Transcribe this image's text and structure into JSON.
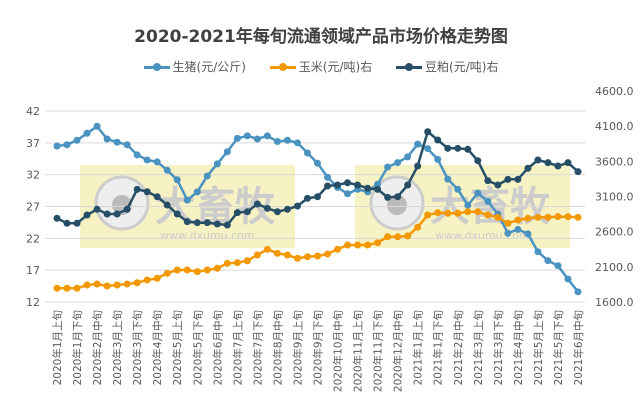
{
  "watermark": {
    "text": "大畜牧",
    "url": "www.dxumu.com"
  },
  "chart_data": {
    "type": "line",
    "title": "2020-2021年每旬流通领域产品市场价格走势图",
    "tick_labels": [
      "2020年1月上旬",
      "2020年1月下旬",
      "2020年2月中旬",
      "2020年3月上旬",
      "2020年3月下旬",
      "2020年4月中旬",
      "2020年5月上旬",
      "2020年5月下旬",
      "2020年6月中旬",
      "2020年7月上旬",
      "2020年7月下旬",
      "2020年8月中旬",
      "2020年9月上旬",
      "2020年9月下旬",
      "2020年10月中旬",
      "2020年11月上旬",
      "2020年11月下旬",
      "2020年12月中旬",
      "2021年1月上旬",
      "2021年1月下旬",
      "2021年2月中旬",
      "2021年3月上旬",
      "2021年3月下旬",
      "2021年4月中旬",
      "2021年5月上旬",
      "2021年5月下旬",
      "2021年6月中旬"
    ],
    "left_axis": {
      "ylim": [
        12,
        42
      ],
      "ticks": [
        "12",
        "17",
        "22",
        "27",
        "32",
        "37",
        "42"
      ]
    },
    "right_axis": {
      "ylim": [
        1600,
        4600
      ],
      "ticks": [
        "1600.0",
        "2100.0",
        "2600.0",
        "3100.0",
        "3600.0",
        "4100.0",
        "4600.0"
      ]
    },
    "grid": true,
    "legend": "top",
    "series": [
      {
        "name": "生猪(元/公斤)",
        "axis": "left",
        "color": "#4a93c0",
        "values": [
          36.5,
          36.7,
          37.4,
          38.5,
          39.6,
          37.6,
          37.1,
          36.7,
          35.1,
          34.3,
          34.0,
          32.7,
          31.2,
          28.0,
          29.3,
          31.8,
          33.7,
          35.6,
          37.7,
          38.1,
          37.6,
          38.1,
          37.2,
          37.4,
          37.0,
          35.4,
          33.8,
          31.6,
          30.0,
          29.0,
          29.7,
          29.3,
          30.5,
          33.2,
          33.9,
          34.8,
          36.8,
          36.1,
          34.4,
          31.3,
          29.7,
          27.2,
          29.1,
          27.8,
          25.8,
          22.8,
          23.4,
          22.7,
          19.9,
          18.5,
          17.7,
          15.6,
          13.6
        ]
      },
      {
        "name": "玉米(元/吨)右",
        "axis": "right",
        "color": "#f39800",
        "values": [
          1795,
          1795,
          1795,
          1842,
          1856,
          1828,
          1842,
          1856,
          1874,
          1913,
          1937,
          2008,
          2055,
          2055,
          2031,
          2055,
          2079,
          2150,
          2159,
          2187,
          2268,
          2349,
          2292,
          2268,
          2221,
          2244,
          2254,
          2283,
          2349,
          2410,
          2410,
          2410,
          2443,
          2528,
          2528,
          2538,
          2662,
          2837,
          2870,
          2861,
          2861,
          2884,
          2884,
          2837,
          2804,
          2719,
          2766,
          2790,
          2804,
          2804,
          2813,
          2813,
          2804
        ]
      },
      {
        "name": "豆粕(元/吨)右",
        "axis": "right",
        "color": "#264e66",
        "values": [
          2790,
          2719,
          2719,
          2837,
          2918,
          2851,
          2851,
          2918,
          3202,
          3168,
          3097,
          2979,
          2851,
          2742,
          2728,
          2728,
          2709,
          2695,
          2870,
          2884,
          2993,
          2932,
          2884,
          2918,
          2965,
          3074,
          3097,
          3249,
          3264,
          3296,
          3264,
          3217,
          3202,
          3088,
          3097,
          3264,
          3534,
          4021,
          3903,
          3785,
          3785,
          3771,
          3609,
          3325,
          3264,
          3344,
          3344,
          3501,
          3619,
          3581,
          3534,
          3581,
          3453
        ]
      }
    ]
  }
}
